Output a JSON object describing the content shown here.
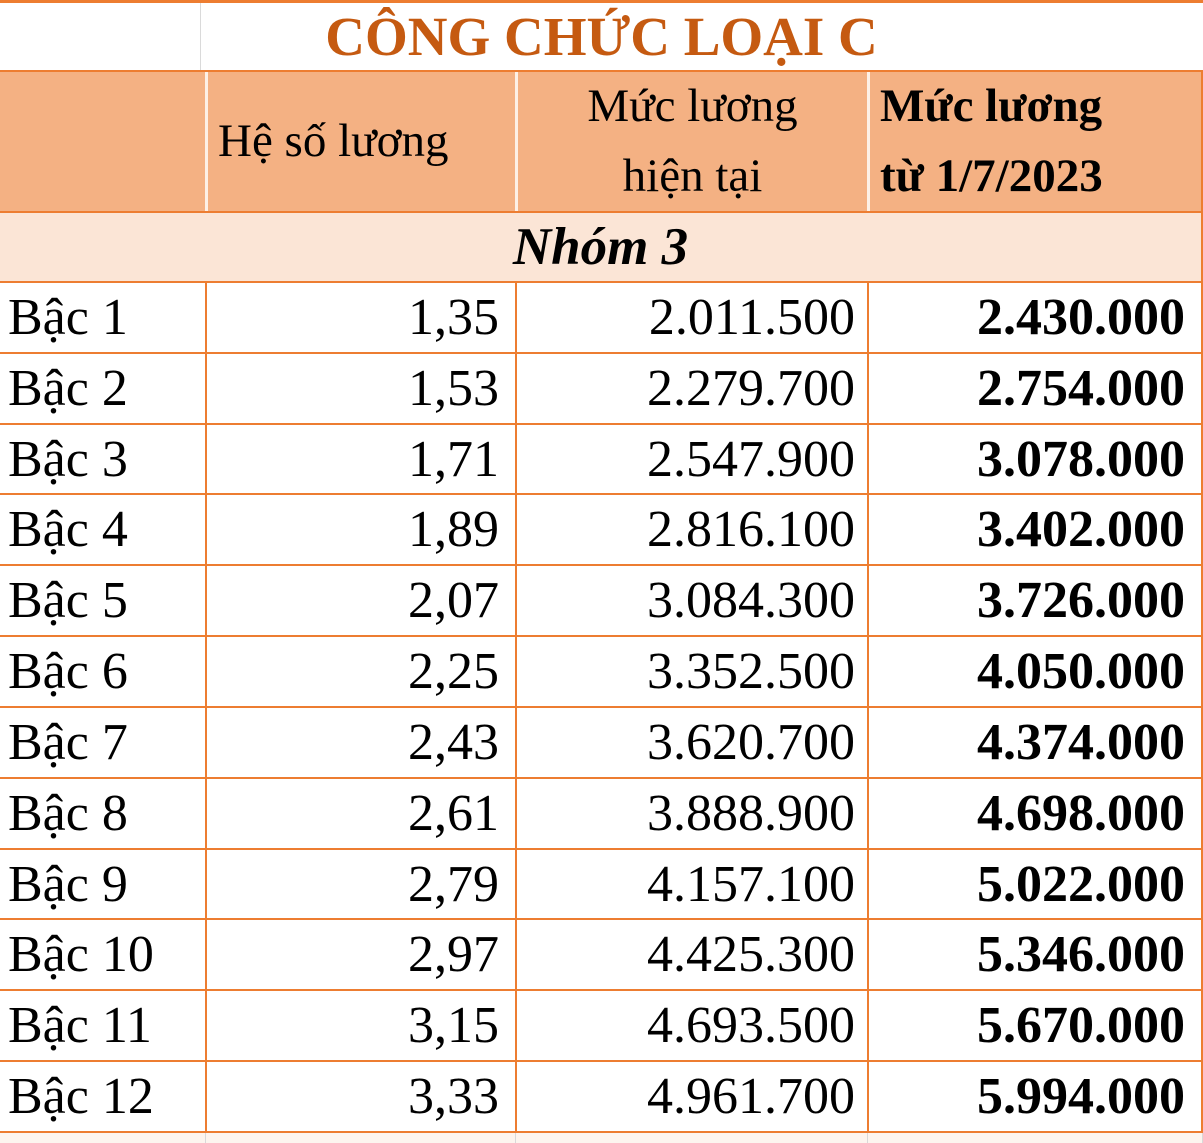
{
  "page": {
    "title": "CÔNG CHỨC LOẠI C"
  },
  "table": {
    "headers": {
      "row_label": "",
      "coefficient": "Hệ số lương",
      "current_salary": [
        "Mức lương",
        "hiện tại"
      ],
      "new_salary": [
        "Mức lương",
        "từ 1/7/2023"
      ]
    },
    "group_label": "Nhóm 3",
    "rows": [
      {
        "label": "Bậc 1",
        "coefficient": "1,35",
        "current": "2.011.500",
        "new_salary": "2.430.000"
      },
      {
        "label": "Bậc 2",
        "coefficient": "1,53",
        "current": "2.279.700",
        "new_salary": "2.754.000"
      },
      {
        "label": "Bậc 3",
        "coefficient": "1,71",
        "current": "2.547.900",
        "new_salary": "3.078.000"
      },
      {
        "label": "Bậc 4",
        "coefficient": "1,89",
        "current": "2.816.100",
        "new_salary": "3.402.000"
      },
      {
        "label": "Bậc 5",
        "coefficient": "2,07",
        "current": "3.084.300",
        "new_salary": "3.726.000"
      },
      {
        "label": "Bậc 6",
        "coefficient": "2,25",
        "current": "3.352.500",
        "new_salary": "4.050.000"
      },
      {
        "label": "Bậc 7",
        "coefficient": "2,43",
        "current": "3.620.700",
        "new_salary": "4.374.000"
      },
      {
        "label": "Bậc 8",
        "coefficient": "2,61",
        "current": "3.888.900",
        "new_salary": "4.698.000"
      },
      {
        "label": "Bậc 9",
        "coefficient": "2,79",
        "current": "4.157.100",
        "new_salary": "5.022.000"
      },
      {
        "label": "Bậc 10",
        "coefficient": "2,97",
        "current": "4.425.300",
        "new_salary": "5.346.000"
      },
      {
        "label": "Bậc 11",
        "coefficient": "3,15",
        "current": "4.693.500",
        "new_salary": "5.670.000"
      },
      {
        "label": "Bậc 12",
        "coefficient": "3,33",
        "current": "4.961.700",
        "new_salary": "5.994.000"
      }
    ]
  },
  "colors": {
    "title_text": "#C55A11",
    "header_bg": "#F4B183",
    "group_row_bg": "#FBE5D6",
    "table_border": "#ED7D31",
    "body_text": "#000000"
  },
  "chart_data": {
    "type": "table",
    "title": "CÔNG CHỨC LOẠI C",
    "columns": [
      "",
      "Hệ số lương",
      "Mức lương hiện tại",
      "Mức lương từ 1/7/2023"
    ],
    "section": "Nhóm 3",
    "rows": [
      [
        "Bậc 1",
        "1,35",
        "2.011.500",
        "2.430.000"
      ],
      [
        "Bậc 2",
        "1,53",
        "2.279.700",
        "2.754.000"
      ],
      [
        "Bậc 3",
        "1,71",
        "2.547.900",
        "3.078.000"
      ],
      [
        "Bậc 4",
        "1,89",
        "2.816.100",
        "3.402.000"
      ],
      [
        "Bậc 5",
        "2,07",
        "3.084.300",
        "3.726.000"
      ],
      [
        "Bậc 6",
        "2,25",
        "3.352.500",
        "4.050.000"
      ],
      [
        "Bậc 7",
        "2,43",
        "3.620.700",
        "4.374.000"
      ],
      [
        "Bậc 8",
        "2,61",
        "3.888.900",
        "4.698.000"
      ],
      [
        "Bậc 9",
        "2,79",
        "4.157.100",
        "5.022.000"
      ],
      [
        "Bậc 10",
        "2,97",
        "4.425.300",
        "5.346.000"
      ],
      [
        "Bậc 11",
        "3,15",
        "4.693.500",
        "5.670.000"
      ],
      [
        "Bậc 12",
        "3,33",
        "4.961.700",
        "5.994.000"
      ]
    ]
  }
}
